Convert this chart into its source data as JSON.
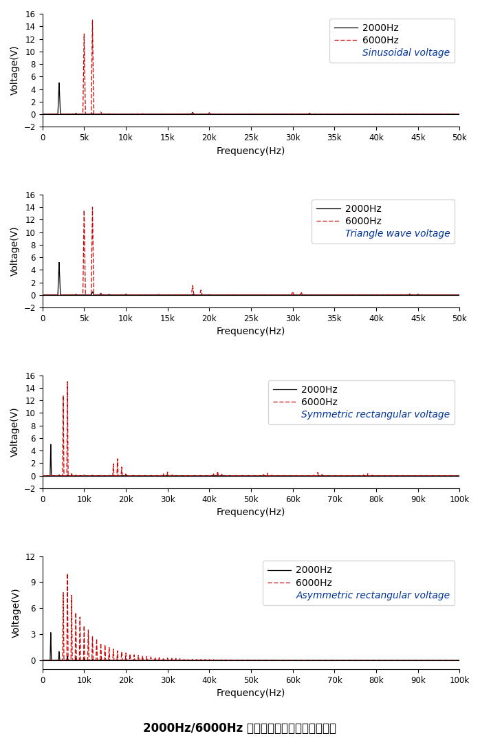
{
  "plots": [
    {
      "title": "Sinusoidal voltage",
      "xlim": [
        0,
        50000
      ],
      "ylim": [
        -2,
        16
      ],
      "yticks": [
        -2,
        0,
        2,
        4,
        6,
        8,
        10,
        12,
        14,
        16
      ],
      "xtick_step": 5000,
      "series_2k": [
        [
          2000,
          5.0
        ],
        [
          4000,
          0.15
        ],
        [
          6000,
          0.08
        ],
        [
          8000,
          0.05
        ],
        [
          18000,
          0.28
        ],
        [
          20000,
          0.22
        ],
        [
          32000,
          0.18
        ]
      ],
      "series_6k": [
        [
          6000,
          15.0
        ],
        [
          5000,
          12.8
        ],
        [
          7000,
          0.35
        ],
        [
          12000,
          0.1
        ],
        [
          18000,
          0.25
        ],
        [
          20000,
          0.2
        ],
        [
          32000,
          0.15
        ]
      ]
    },
    {
      "title": "Triangle wave voltage",
      "xlim": [
        0,
        50000
      ],
      "ylim": [
        -2,
        16
      ],
      "yticks": [
        -2,
        0,
        2,
        4,
        6,
        8,
        10,
        12,
        14,
        16
      ],
      "xtick_step": 5000,
      "series_2k": [
        [
          2000,
          5.2
        ],
        [
          4000,
          0.12
        ],
        [
          6000,
          0.5
        ],
        [
          8000,
          0.08
        ],
        [
          10000,
          0.15
        ],
        [
          14000,
          0.08
        ],
        [
          18000,
          0.08
        ],
        [
          20000,
          0.06
        ],
        [
          45000,
          0.12
        ]
      ],
      "series_6k": [
        [
          5000,
          13.5
        ],
        [
          6000,
          14.0
        ],
        [
          7000,
          0.3
        ],
        [
          18000,
          1.5
        ],
        [
          19000,
          0.8
        ],
        [
          30000,
          0.55
        ],
        [
          31000,
          0.5
        ],
        [
          44000,
          0.18
        ],
        [
          45000,
          0.12
        ]
      ]
    },
    {
      "title": "Symmetric rectangular voltage",
      "xlim": [
        0,
        100000
      ],
      "ylim": [
        -2,
        16
      ],
      "yticks": [
        -2,
        0,
        2,
        4,
        6,
        8,
        10,
        12,
        14,
        16
      ],
      "xtick_step": 10000,
      "series_2k": [
        [
          2000,
          5.0
        ],
        [
          4000,
          0.12
        ],
        [
          6000,
          0.08
        ],
        [
          8000,
          0.06
        ],
        [
          10000,
          0.1
        ],
        [
          12000,
          0.07
        ],
        [
          14000,
          0.06
        ],
        [
          16000,
          0.05
        ],
        [
          18000,
          0.06
        ],
        [
          20000,
          0.05
        ],
        [
          22000,
          0.04
        ],
        [
          26000,
          0.03
        ],
        [
          30000,
          0.03
        ],
        [
          34000,
          0.02
        ],
        [
          38000,
          0.02
        ],
        [
          42000,
          0.02
        ],
        [
          46000,
          0.02
        ],
        [
          50000,
          0.02
        ],
        [
          54000,
          0.015
        ],
        [
          58000,
          0.01
        ],
        [
          62000,
          0.01
        ],
        [
          66000,
          0.01
        ],
        [
          70000,
          0.01
        ],
        [
          74000,
          0.01
        ],
        [
          78000,
          0.01
        ],
        [
          82000,
          0.01
        ],
        [
          86000,
          0.01
        ],
        [
          90000,
          0.01
        ],
        [
          94000,
          0.01
        ]
      ],
      "series_6k": [
        [
          6000,
          15.0
        ],
        [
          5000,
          12.8
        ],
        [
          7000,
          0.45
        ],
        [
          8000,
          0.2
        ],
        [
          18000,
          2.7
        ],
        [
          17000,
          1.9
        ],
        [
          19000,
          1.4
        ],
        [
          20000,
          0.3
        ],
        [
          30000,
          0.6
        ],
        [
          29000,
          0.3
        ],
        [
          31000,
          0.25
        ],
        [
          42000,
          0.7
        ],
        [
          41000,
          0.3
        ],
        [
          43000,
          0.25
        ],
        [
          54000,
          0.4
        ],
        [
          53000,
          0.2
        ],
        [
          55000,
          0.15
        ],
        [
          66000,
          0.55
        ],
        [
          65000,
          0.25
        ],
        [
          67000,
          0.2
        ],
        [
          78000,
          0.35
        ],
        [
          77000,
          0.15
        ],
        [
          79000,
          0.12
        ]
      ]
    },
    {
      "title": "Asymmetric rectangular voltage",
      "xlim": [
        0,
        100000
      ],
      "ylim": [
        -1,
        12
      ],
      "yticks": [
        0,
        3,
        6,
        9,
        12
      ],
      "xtick_step": 10000,
      "series_2k": [
        [
          2000,
          3.2
        ],
        [
          4000,
          1.0
        ],
        [
          6000,
          0.5
        ],
        [
          8000,
          0.3
        ],
        [
          10000,
          0.22
        ],
        [
          12000,
          0.16
        ],
        [
          14000,
          0.13
        ],
        [
          16000,
          0.1
        ],
        [
          18000,
          0.08
        ],
        [
          20000,
          0.07
        ],
        [
          22000,
          0.06
        ],
        [
          24000,
          0.05
        ],
        [
          26000,
          0.045
        ],
        [
          28000,
          0.04
        ],
        [
          30000,
          0.035
        ],
        [
          32000,
          0.03
        ],
        [
          34000,
          0.028
        ],
        [
          36000,
          0.025
        ],
        [
          38000,
          0.022
        ],
        [
          40000,
          0.02
        ],
        [
          42000,
          0.018
        ],
        [
          44000,
          0.016
        ],
        [
          46000,
          0.015
        ],
        [
          48000,
          0.013
        ],
        [
          50000,
          0.012
        ],
        [
          52000,
          0.011
        ],
        [
          54000,
          0.01
        ],
        [
          56000,
          0.009
        ],
        [
          58000,
          0.008
        ],
        [
          60000,
          0.007
        ],
        [
          62000,
          0.007
        ],
        [
          64000,
          0.006
        ],
        [
          66000,
          0.006
        ],
        [
          68000,
          0.005
        ],
        [
          70000,
          0.005
        ],
        [
          72000,
          0.005
        ],
        [
          74000,
          0.004
        ],
        [
          76000,
          0.004
        ],
        [
          78000,
          0.004
        ],
        [
          80000,
          0.003
        ],
        [
          82000,
          0.003
        ],
        [
          84000,
          0.003
        ],
        [
          86000,
          0.003
        ],
        [
          88000,
          0.003
        ],
        [
          90000,
          0.003
        ],
        [
          92000,
          0.003
        ],
        [
          94000,
          0.002
        ],
        [
          96000,
          0.002
        ],
        [
          98000,
          0.002
        ]
      ],
      "series_6k": [
        [
          6000,
          10.0
        ],
        [
          5000,
          7.8
        ],
        [
          7000,
          7.5
        ],
        [
          8000,
          5.5
        ],
        [
          9000,
          5.0
        ],
        [
          10000,
          4.0
        ],
        [
          11000,
          3.5
        ],
        [
          12000,
          2.8
        ],
        [
          13000,
          2.5
        ],
        [
          14000,
          2.0
        ],
        [
          15000,
          1.8
        ],
        [
          16000,
          1.5
        ],
        [
          17000,
          1.3
        ],
        [
          18000,
          1.1
        ],
        [
          19000,
          1.0
        ],
        [
          20000,
          0.85
        ],
        [
          21000,
          0.75
        ],
        [
          22000,
          0.65
        ],
        [
          23000,
          0.58
        ],
        [
          24000,
          0.52
        ],
        [
          25000,
          0.46
        ],
        [
          26000,
          0.41
        ],
        [
          27000,
          0.37
        ],
        [
          28000,
          0.33
        ],
        [
          29000,
          0.3
        ],
        [
          30000,
          0.27
        ],
        [
          31000,
          0.24
        ],
        [
          32000,
          0.22
        ],
        [
          33000,
          0.2
        ],
        [
          34000,
          0.18
        ],
        [
          35000,
          0.16
        ],
        [
          36000,
          0.15
        ],
        [
          37000,
          0.13
        ],
        [
          38000,
          0.12
        ],
        [
          39000,
          0.11
        ],
        [
          40000,
          0.1
        ],
        [
          41000,
          0.09
        ],
        [
          42000,
          0.085
        ],
        [
          43000,
          0.08
        ],
        [
          44000,
          0.075
        ],
        [
          45000,
          0.07
        ],
        [
          46000,
          0.065
        ],
        [
          47000,
          0.06
        ],
        [
          48000,
          0.055
        ],
        [
          49000,
          0.05
        ],
        [
          50000,
          0.048
        ],
        [
          51000,
          0.045
        ],
        [
          52000,
          0.042
        ],
        [
          53000,
          0.04
        ],
        [
          54000,
          0.038
        ],
        [
          55000,
          0.035
        ],
        [
          56000,
          0.033
        ],
        [
          57000,
          0.031
        ],
        [
          58000,
          0.029
        ],
        [
          59000,
          0.027
        ],
        [
          60000,
          0.025
        ],
        [
          62000,
          0.023
        ],
        [
          64000,
          0.021
        ],
        [
          66000,
          0.019
        ],
        [
          68000,
          0.018
        ],
        [
          70000,
          0.016
        ],
        [
          72000,
          0.015
        ],
        [
          74000,
          0.014
        ],
        [
          76000,
          0.013
        ],
        [
          78000,
          0.012
        ],
        [
          80000,
          0.011
        ],
        [
          82000,
          0.01
        ],
        [
          84000,
          0.009
        ],
        [
          86000,
          0.008
        ],
        [
          88000,
          0.008
        ],
        [
          90000,
          0.007
        ],
        [
          92000,
          0.007
        ],
        [
          94000,
          0.006
        ],
        [
          96000,
          0.006
        ],
        [
          98000,
          0.005
        ]
      ]
    }
  ],
  "color_2k": "#000000",
  "color_6k": "#cc0000",
  "label_2k": "2000Hz",
  "label_6k": "6000Hz",
  "ylabel": "Voltage(V)",
  "xlabel": "Frequency(Hz)",
  "axis_fontsize": 10,
  "tick_fontsize": 8.5,
  "legend_fontsize": 10,
  "legend_title_fontsize": 10,
  "main_title": "2000Hz/6000Hz 下不同激励波形的电压频谱图"
}
